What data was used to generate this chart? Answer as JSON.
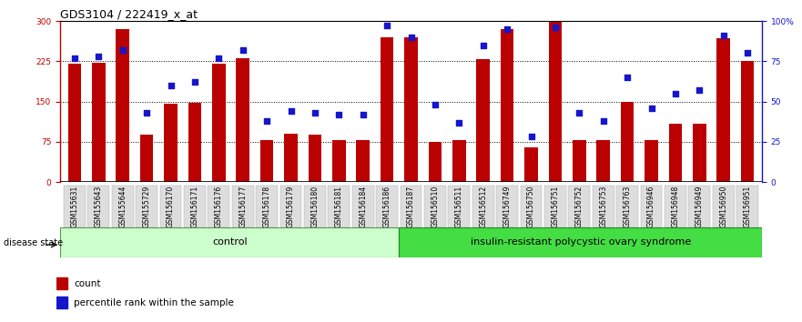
{
  "title": "GDS3104 / 222419_x_at",
  "samples": [
    "GSM155631",
    "GSM155643",
    "GSM155644",
    "GSM155729",
    "GSM156170",
    "GSM156171",
    "GSM156176",
    "GSM156177",
    "GSM156178",
    "GSM156179",
    "GSM156180",
    "GSM156181",
    "GSM156184",
    "GSM156186",
    "GSM156187",
    "GSM156510",
    "GSM156511",
    "GSM156512",
    "GSM156749",
    "GSM156750",
    "GSM156751",
    "GSM156752",
    "GSM156753",
    "GSM156763",
    "GSM156946",
    "GSM156948",
    "GSM156949",
    "GSM156950",
    "GSM156951"
  ],
  "bar_values": [
    220,
    222,
    285,
    88,
    145,
    148,
    220,
    230,
    78,
    90,
    88,
    78,
    78,
    270,
    270,
    75,
    78,
    228,
    285,
    65,
    298,
    78,
    78,
    150,
    78,
    108,
    108,
    268,
    225
  ],
  "dot_percentiles": [
    77,
    78,
    82,
    43,
    60,
    62,
    77,
    82,
    38,
    44,
    43,
    42,
    42,
    97,
    90,
    48,
    37,
    85,
    95,
    28,
    96,
    43,
    38,
    65,
    46,
    55,
    57,
    91,
    80
  ],
  "control_count": 14,
  "disease_count": 15,
  "control_label": "control",
  "disease_label": "insulin-resistant polycystic ovary syndrome",
  "disease_state_label": "disease state",
  "ylim_left": [
    0,
    300
  ],
  "ylim_right": [
    0,
    100
  ],
  "yticks_left": [
    0,
    75,
    150,
    225,
    300
  ],
  "yticks_right": [
    0,
    25,
    50,
    75,
    100
  ],
  "bar_color": "#bb0000",
  "dot_color": "#1515cc",
  "control_bg": "#ccffcc",
  "disease_bg": "#44dd44",
  "legend_count_label": "count",
  "legend_pct_label": "percentile rank within the sample",
  "title_fontsize": 9,
  "tick_fontsize": 6.5,
  "label_fontsize": 7.5
}
